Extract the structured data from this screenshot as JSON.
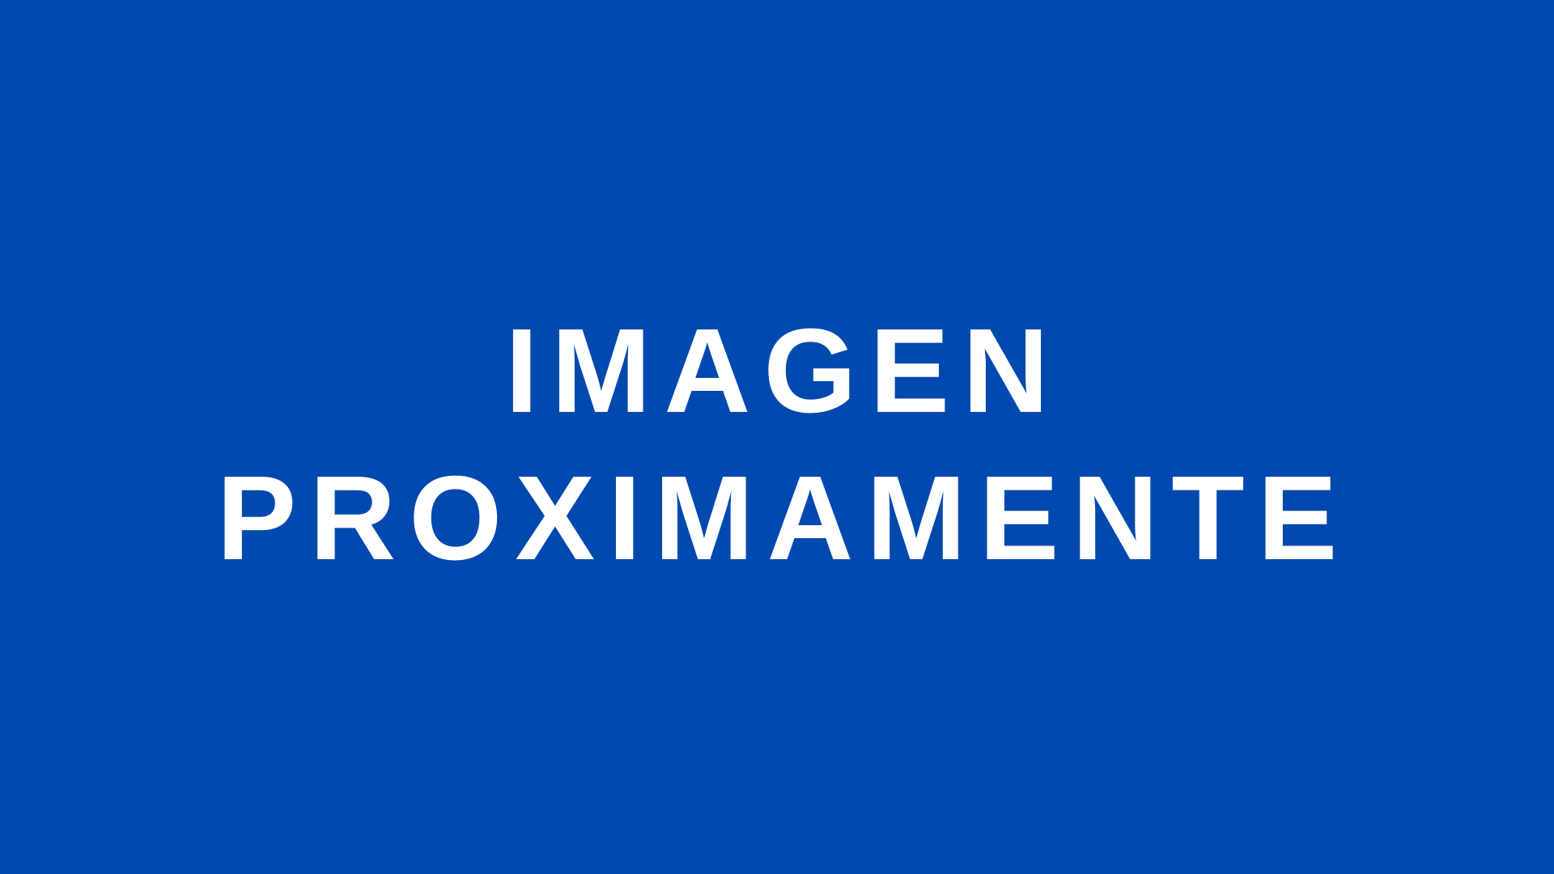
{
  "placeholder": {
    "line1": "IMAGEN",
    "line2": "PROXIMAMENTE"
  },
  "colors": {
    "background": "#0249AF",
    "text": "#FFFFFF"
  }
}
